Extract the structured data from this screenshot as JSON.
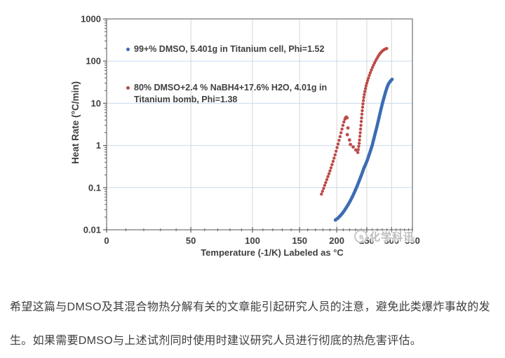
{
  "watermark": {
    "text": "化学科讯"
  },
  "caption": {
    "lines": [
      "希望这篇与DMSO及其混合物热分解有关的文章能引起研究人员的注意，避免此类爆炸事故的发",
      "生。如果需要DMSO与上述试剂同时使用时建议研究人员进行彻底的热危害评估。"
    ]
  },
  "chart_data": {
    "type": "scatter",
    "title": "",
    "xlabel": "Temperature (-1/K) Labeled as °C",
    "ylabel": "Heat Rate (°C/min)",
    "x_scale": "reciprocal-kelvin",
    "y_scale": "log",
    "xlim": [
      0,
      350
    ],
    "ylim": [
      0.01,
      1000
    ],
    "x_ticks": [
      0,
      50,
      100,
      150,
      200,
      250,
      300,
      350
    ],
    "x_minor_tick_step": 10,
    "y_ticks": [
      0.01,
      0.1,
      1,
      10,
      100,
      1000
    ],
    "grid": {
      "horizontal_color": "#c9daf0",
      "vertical_color": "#d6d6d6"
    },
    "axis": {
      "border_color": "#707070",
      "tick_color": "#5f5f5f",
      "label_color": "#3f3f3f"
    },
    "legend_position": "inside-top-left",
    "legend": [
      {
        "label": "99+% DMSO, 5.401g in Titanium cell, Phi=1.52",
        "label_line1": "99+% DMSO, 5.401g in Titanium cell, Phi=1.52",
        "label_line2": "",
        "color": "#3d6cb4"
      },
      {
        "label": "80% DMSO+2.4 % NaBH4+17.6% H2O, 4.01g in Titanium bomb, Phi=1.38",
        "label_line1": "80% DMSO+2.4 % NaBH4+17.6% H2O, 4.01g in",
        "label_line2": "Titanium bomb, Phi=1.38",
        "color": "#be4a46"
      }
    ],
    "series": [
      {
        "name": "99+% DMSO, 5.401g in Titanium cell, Phi=1.52",
        "color": "#3d6cb4",
        "line_width": 4.6,
        "marker_radius": 2.3,
        "runs": [
          [
            [
              198,
              0.017
            ],
            [
              200,
              0.018
            ],
            [
              202,
              0.019
            ],
            [
              204,
              0.0205
            ],
            [
              206,
              0.022
            ],
            [
              209,
              0.025
            ],
            [
              212,
              0.029
            ],
            [
              215,
              0.034
            ],
            [
              218,
              0.04
            ],
            [
              221,
              0.048
            ],
            [
              224,
              0.058
            ],
            [
              227,
              0.071
            ],
            [
              230,
              0.088
            ],
            [
              233,
              0.11
            ],
            [
              236,
              0.14
            ],
            [
              239,
              0.18
            ],
            [
              242,
              0.23
            ],
            [
              245,
              0.295
            ],
            [
              248,
              0.36
            ],
            [
              251,
              0.45
            ],
            [
              254,
              0.58
            ],
            [
              257,
              0.76
            ],
            [
              260,
              1.0
            ],
            [
              263,
              1.4
            ],
            [
              266,
              1.95
            ],
            [
              269,
              2.7
            ],
            [
              272,
              3.8
            ],
            [
              275,
              5.4
            ],
            [
              278,
              7.6
            ],
            [
              281,
              10.5
            ],
            [
              284,
              14
            ],
            [
              287,
              18.5
            ],
            [
              290,
              23.5
            ],
            [
              293,
              28.5
            ],
            [
              296,
              32
            ],
            [
              299,
              35
            ],
            [
              301,
              37
            ]
          ]
        ],
        "scatter": []
      },
      {
        "name": "80% DMSO+2.4 % NaBH4+17.6% H2O, 4.01g in Titanium bomb, Phi=1.38",
        "color": "#be4a46",
        "line_width": 0,
        "marker_radius": 2.2,
        "runs": [
          [
            [
              178,
              0.07
            ],
            [
              179.5,
              0.082
            ],
            [
              181,
              0.096
            ],
            [
              182.5,
              0.113
            ],
            [
              184,
              0.132
            ],
            [
              185.5,
              0.155
            ],
            [
              187,
              0.182
            ],
            [
              188.5,
              0.213
            ],
            [
              190,
              0.25
            ],
            [
              191.5,
              0.295
            ],
            [
              193,
              0.35
            ],
            [
              194.5,
              0.42
            ],
            [
              196,
              0.5
            ],
            [
              197.5,
              0.6
            ],
            [
              199,
              0.73
            ],
            [
              200.5,
              0.89
            ],
            [
              202,
              1.08
            ],
            [
              203.5,
              1.32
            ],
            [
              205,
              1.62
            ],
            [
              206.5,
              2.0
            ],
            [
              208,
              2.45
            ],
            [
              209.5,
              3.0
            ],
            [
              211,
              3.6
            ],
            [
              212.5,
              4.2
            ],
            [
              213.8,
              4.6
            ],
            [
              215,
              4.72
            ],
            [
              216.2,
              4.5
            ]
          ],
          [
            [
              234,
              0.68
            ],
            [
              234.8,
              0.8
            ],
            [
              235.6,
              0.95
            ],
            [
              236.3,
              1.12
            ],
            [
              237,
              1.35
            ],
            [
              237.6,
              1.65
            ],
            [
              238.2,
              2.0
            ],
            [
              238.8,
              2.45
            ],
            [
              239.4,
              3.0
            ],
            [
              240,
              3.7
            ],
            [
              240.6,
              4.5
            ],
            [
              241.2,
              5.5
            ],
            [
              241.8,
              6.7
            ],
            [
              242.4,
              8.1
            ],
            [
              243,
              9.7
            ],
            [
              243.8,
              11.6
            ],
            [
              244.6,
              13.8
            ],
            [
              245.5,
              16.2
            ],
            [
              246.5,
              19
            ],
            [
              247.6,
              22.3
            ],
            [
              248.8,
              26
            ],
            [
              250,
              30
            ],
            [
              251.5,
              34.5
            ],
            [
              253,
              39.5
            ],
            [
              254.8,
              46
            ],
            [
              256.6,
              53
            ],
            [
              258.5,
              61
            ],
            [
              260.5,
              70
            ],
            [
              262.6,
              80
            ],
            [
              264.8,
              91
            ],
            [
              267,
              103
            ],
            [
              269.3,
              115
            ],
            [
              271.6,
              128
            ],
            [
              274,
              142
            ],
            [
              276.4,
              155
            ],
            [
              278.8,
              167
            ],
            [
              281.2,
              177
            ],
            [
              283.6,
              186
            ],
            [
              286,
              192
            ],
            [
              288,
              196
            ],
            [
              289.5,
              199
            ]
          ]
        ],
        "scatter": [
          [
            216.5,
            1.8
          ],
          [
            217.5,
            2.6
          ],
          [
            220,
            1.35
          ],
          [
            221.5,
            1.05
          ],
          [
            226,
            0.92
          ],
          [
            230.5,
            0.78
          ]
        ]
      }
    ]
  }
}
